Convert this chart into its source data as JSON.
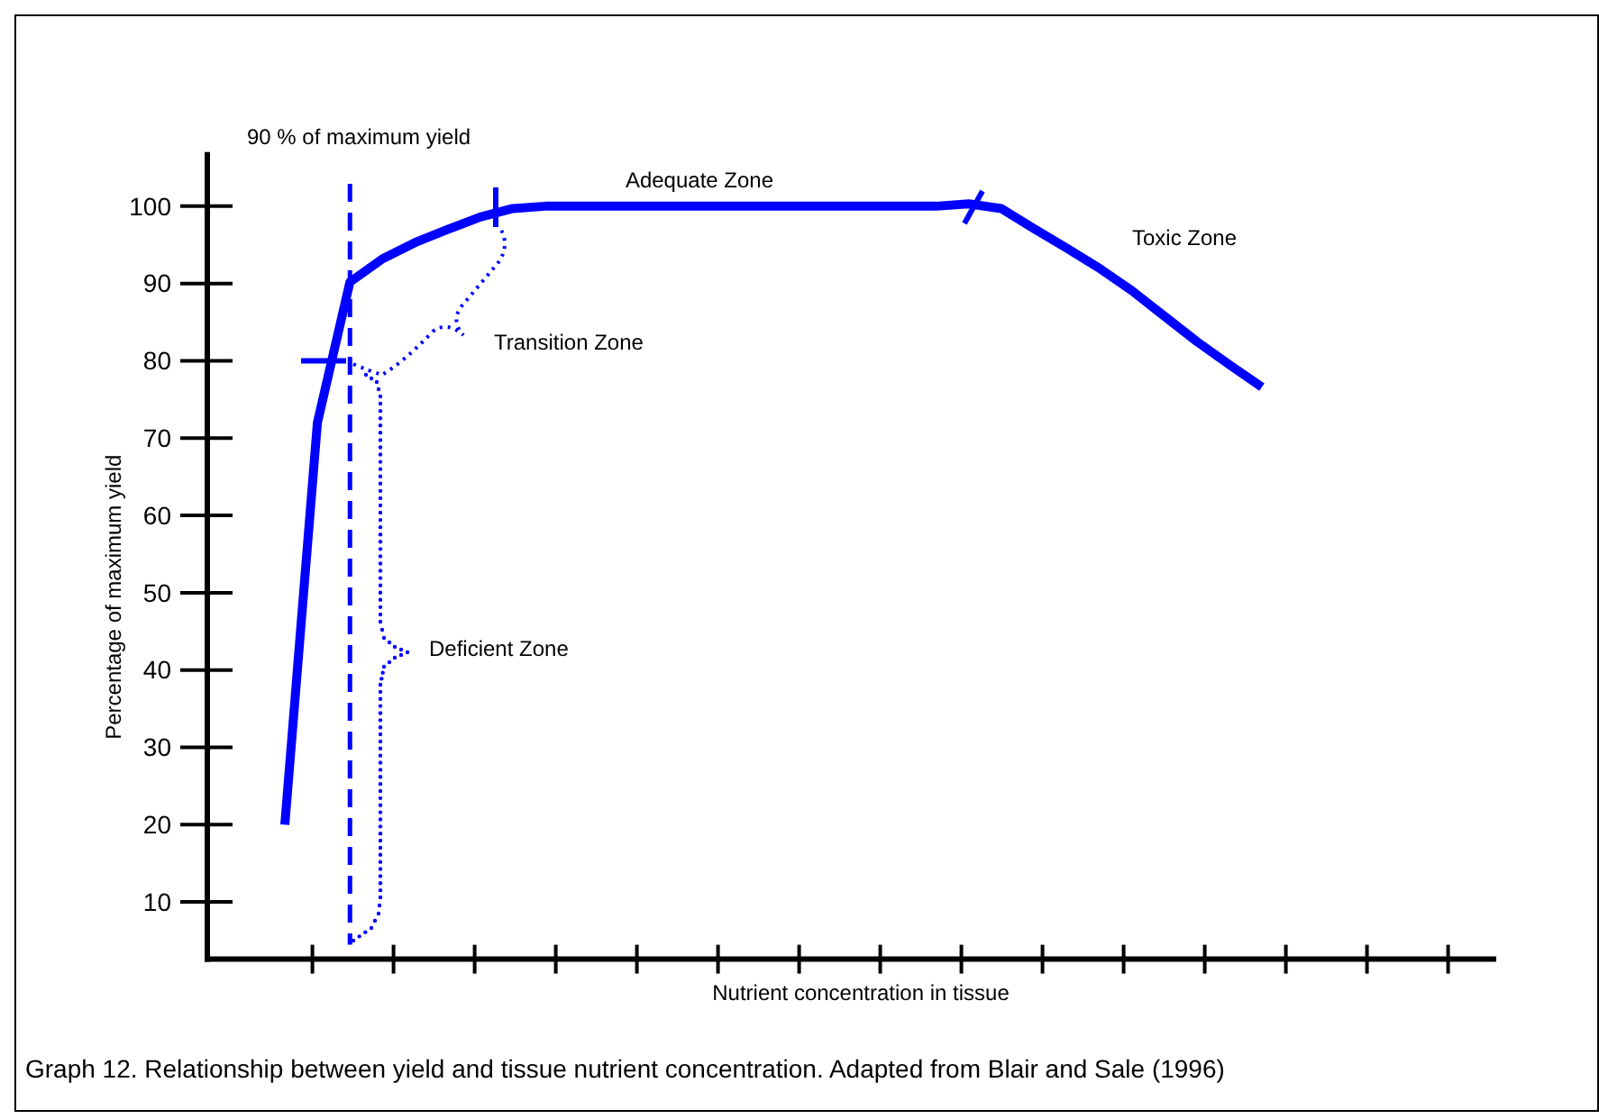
{
  "chart_data": {
    "type": "line",
    "xlabel": "Nutrient concentration in tissue",
    "ylabel": "Percentage of maximum yield",
    "categories": [
      null,
      null,
      null,
      null,
      null,
      null,
      null,
      null,
      null,
      null,
      null,
      null,
      null,
      null,
      null,
      null,
      null,
      null,
      null,
      null,
      null,
      null,
      null,
      null,
      null,
      null,
      null,
      null,
      null,
      null,
      null
    ],
    "ylim": [
      2.6,
      107
    ],
    "yticks": [
      10,
      20,
      30,
      40,
      50,
      60,
      70,
      80,
      90,
      100
    ],
    "grid": false,
    "marker": "none",
    "line_style": "solid",
    "series": [
      {
        "color": "#0000ff",
        "values": [
          20,
          72,
          90.2,
          93.2,
          95.3,
          97,
          98.6,
          99.7,
          100,
          100,
          100,
          100,
          100,
          100,
          100,
          100,
          100,
          100,
          100,
          100,
          100,
          100.3,
          99.7,
          97.1,
          94.6,
          92,
          89.1,
          85.8,
          82.5,
          79.5,
          76.6
        ]
      }
    ],
    "annotations": [
      "90 % of maximum yield",
      "Adequate Zone",
      "Transition Zone",
      "Deficient Zone",
      "Toxic Zone",
      "Graph 12. Relationship between yield and tissue nutrient concentration. Adapted from Blair and Sale (1996)"
    ]
  }
}
